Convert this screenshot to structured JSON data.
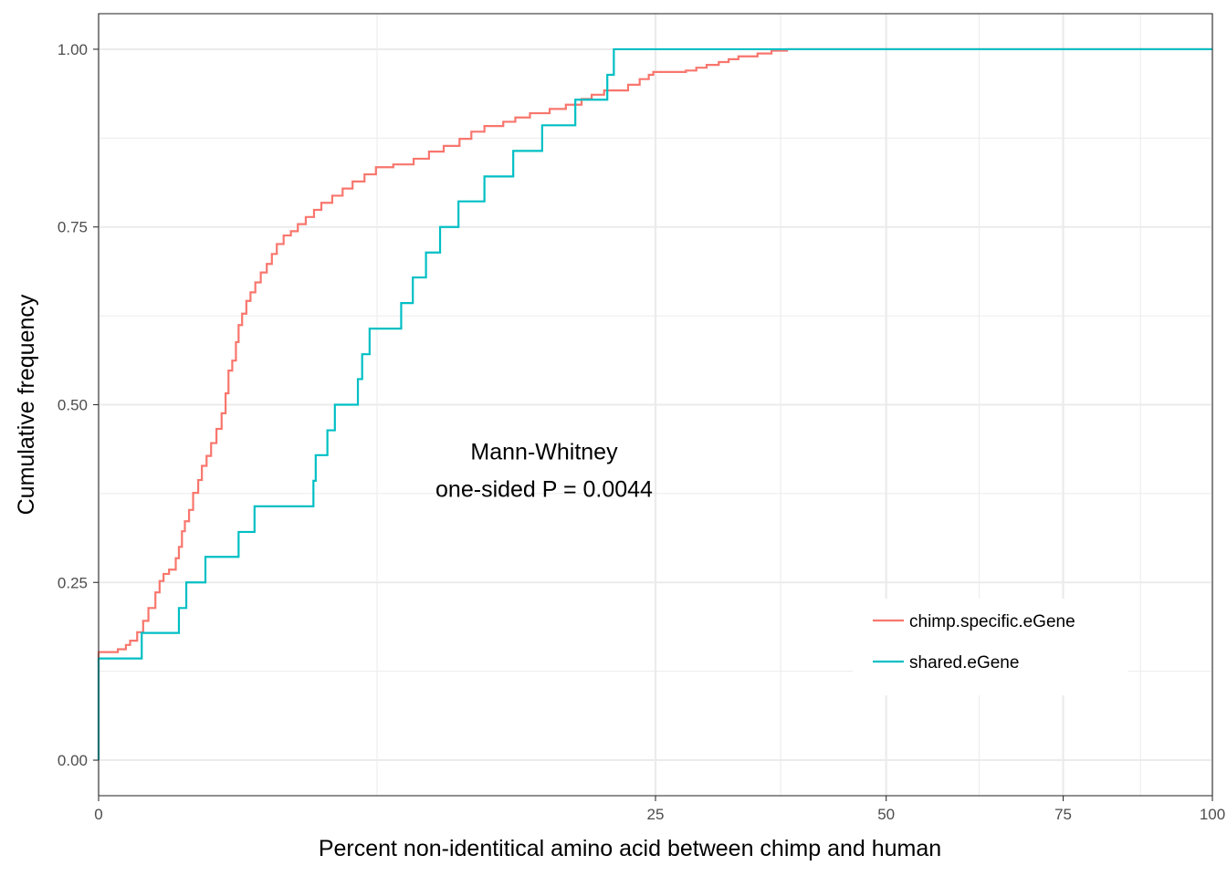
{
  "chart_data": {
    "type": "line",
    "subtype": "step-ecdf",
    "xlabel": "Percent non-identitical amino acid between chimp and human",
    "ylabel": "Cumulative frequency",
    "x_scale": "sqrt",
    "xlim": [
      0,
      100
    ],
    "ylim": [
      -0.05,
      1.05
    ],
    "x_ticks": [
      {
        "value": 0,
        "label": "0"
      },
      {
        "value": 25,
        "label": "25"
      },
      {
        "value": 50,
        "label": "50"
      },
      {
        "value": 75,
        "label": "75"
      },
      {
        "value": 100,
        "label": "100"
      }
    ],
    "y_ticks": [
      {
        "value": 0.0,
        "label": "0.00"
      },
      {
        "value": 0.25,
        "label": "0.25"
      },
      {
        "value": 0.5,
        "label": "0.50"
      },
      {
        "value": 0.75,
        "label": "0.75"
      },
      {
        "value": 1.0,
        "label": "1.00"
      }
    ],
    "grid": true,
    "legend_position": "bottom-right",
    "annotation": [
      "Mann-Whitney",
      "one-sided P = 0.0044"
    ],
    "series": [
      {
        "name": "chimp.specific.eGene",
        "color": "#F8766D",
        "points": [
          [
            0.0,
            0.152
          ],
          [
            0.03,
            0.156
          ],
          [
            0.06,
            0.162
          ],
          [
            0.08,
            0.168
          ],
          [
            0.12,
            0.18
          ],
          [
            0.16,
            0.196
          ],
          [
            0.2,
            0.214
          ],
          [
            0.26,
            0.236
          ],
          [
            0.3,
            0.252
          ],
          [
            0.34,
            0.262
          ],
          [
            0.4,
            0.268
          ],
          [
            0.48,
            0.284
          ],
          [
            0.52,
            0.3
          ],
          [
            0.56,
            0.322
          ],
          [
            0.6,
            0.336
          ],
          [
            0.66,
            0.352
          ],
          [
            0.72,
            0.376
          ],
          [
            0.8,
            0.394
          ],
          [
            0.86,
            0.414
          ],
          [
            0.94,
            0.428
          ],
          [
            1.02,
            0.446
          ],
          [
            1.12,
            0.466
          ],
          [
            1.22,
            0.488
          ],
          [
            1.3,
            0.516
          ],
          [
            1.36,
            0.548
          ],
          [
            1.44,
            0.562
          ],
          [
            1.52,
            0.588
          ],
          [
            1.58,
            0.612
          ],
          [
            1.66,
            0.628
          ],
          [
            1.76,
            0.646
          ],
          [
            1.86,
            0.658
          ],
          [
            1.98,
            0.672
          ],
          [
            2.12,
            0.686
          ],
          [
            2.28,
            0.698
          ],
          [
            2.42,
            0.712
          ],
          [
            2.56,
            0.726
          ],
          [
            2.76,
            0.738
          ],
          [
            2.98,
            0.744
          ],
          [
            3.2,
            0.754
          ],
          [
            3.46,
            0.764
          ],
          [
            3.74,
            0.774
          ],
          [
            4.0,
            0.784
          ],
          [
            4.4,
            0.794
          ],
          [
            4.8,
            0.804
          ],
          [
            5.2,
            0.814
          ],
          [
            5.7,
            0.824
          ],
          [
            6.2,
            0.834
          ],
          [
            7.0,
            0.838
          ],
          [
            8.0,
            0.846
          ],
          [
            8.8,
            0.856
          ],
          [
            9.6,
            0.864
          ],
          [
            10.5,
            0.874
          ],
          [
            11.2,
            0.884
          ],
          [
            12.0,
            0.892
          ],
          [
            13.2,
            0.898
          ],
          [
            14.0,
            0.904
          ],
          [
            15.0,
            0.91
          ],
          [
            16.4,
            0.916
          ],
          [
            17.6,
            0.922
          ],
          [
            18.8,
            0.93
          ],
          [
            19.6,
            0.936
          ],
          [
            20.6,
            0.942
          ],
          [
            22.6,
            0.95
          ],
          [
            23.6,
            0.958
          ],
          [
            24.4,
            0.964
          ],
          [
            24.8,
            0.968
          ],
          [
            27.8,
            0.97
          ],
          [
            28.8,
            0.974
          ],
          [
            29.8,
            0.978
          ],
          [
            31.0,
            0.982
          ],
          [
            32.0,
            0.986
          ],
          [
            33.0,
            0.99
          ],
          [
            35.0,
            0.994
          ],
          [
            36.5,
            0.998
          ],
          [
            38.2,
            1.0
          ],
          [
            100.0,
            1.0
          ]
        ]
      },
      {
        "name": "shared.eGene",
        "color": "#00BFC4",
        "points": [
          [
            0.0,
            0.143
          ],
          [
            0.15,
            0.179
          ],
          [
            0.52,
            0.214
          ],
          [
            0.62,
            0.25
          ],
          [
            0.92,
            0.286
          ],
          [
            1.58,
            0.321
          ],
          [
            1.96,
            0.357
          ],
          [
            3.72,
            0.393
          ],
          [
            3.8,
            0.429
          ],
          [
            4.22,
            0.464
          ],
          [
            4.5,
            0.5
          ],
          [
            5.42,
            0.536
          ],
          [
            5.6,
            0.571
          ],
          [
            5.92,
            0.607
          ],
          [
            7.38,
            0.643
          ],
          [
            7.96,
            0.679
          ],
          [
            8.64,
            0.714
          ],
          [
            9.4,
            0.75
          ],
          [
            10.44,
            0.786
          ],
          [
            12.0,
            0.821
          ],
          [
            13.86,
            0.857
          ],
          [
            15.86,
            0.893
          ],
          [
            18.32,
            0.929
          ],
          [
            20.86,
            0.964
          ],
          [
            21.4,
            1.0
          ],
          [
            100.0,
            1.0
          ]
        ]
      }
    ]
  }
}
